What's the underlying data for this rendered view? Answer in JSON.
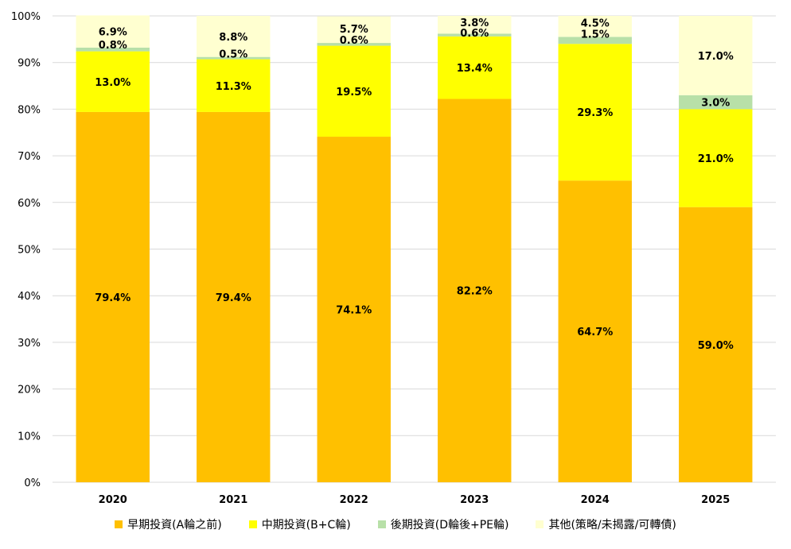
{
  "chart_data": {
    "type": "bar",
    "stacked": true,
    "percent": true,
    "categories": [
      "2020",
      "2021",
      "2022",
      "2023",
      "2024",
      "2025"
    ],
    "ylim": [
      0,
      100
    ],
    "yticks": [
      "0%",
      "10%",
      "20%",
      "30%",
      "40%",
      "50%",
      "60%",
      "70%",
      "80%",
      "90%",
      "100%"
    ],
    "grid": true,
    "legend_position": "bottom",
    "series": [
      {
        "name": "早期投資(A輪之前)",
        "color": "#FFC000",
        "values": [
          79.4,
          79.4,
          74.1,
          82.2,
          64.7,
          59.0
        ],
        "labels": [
          "79.4%",
          "79.4%",
          "74.1%",
          "82.2%",
          "64.7%",
          "59.0%"
        ]
      },
      {
        "name": "中期投資(B+C輪)",
        "color": "#FFFF00",
        "values": [
          13.0,
          11.3,
          19.5,
          13.4,
          29.3,
          21.0
        ],
        "labels": [
          "13.0%",
          "11.3%",
          "19.5%",
          "13.4%",
          "29.3%",
          "21.0%"
        ]
      },
      {
        "name": "後期投資(D輪後+PE輪)",
        "color": "#B8E0A8",
        "values": [
          0.8,
          0.5,
          0.6,
          0.6,
          1.5,
          3.0
        ],
        "labels": [
          "0.8%",
          "0.5%",
          "0.6%",
          "0.6%",
          "1.5%",
          "3.0%"
        ]
      },
      {
        "name": "其他(策略/未揭露/可轉債)",
        "color": "#FFFFD0",
        "values": [
          6.9,
          8.8,
          5.7,
          3.8,
          4.5,
          17.0
        ],
        "labels": [
          "6.9%",
          "8.8%",
          "5.7%",
          "3.8%",
          "4.5%",
          "17.0%"
        ]
      }
    ]
  }
}
